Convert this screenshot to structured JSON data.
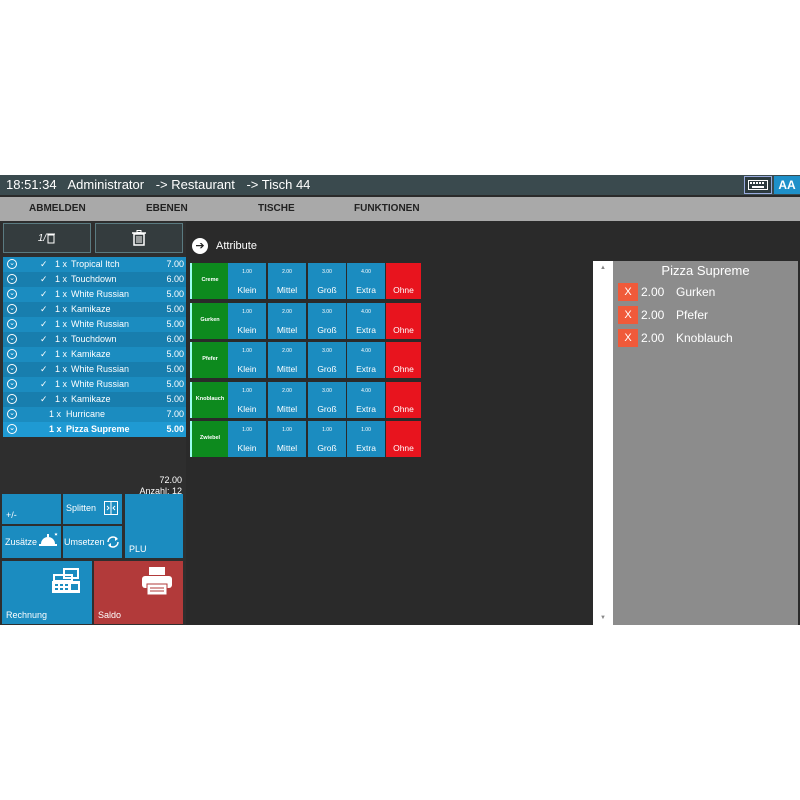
{
  "titlebar": {
    "time": "18:51:34",
    "user": "Administrator",
    "crumb1": "-> Restaurant",
    "crumb2": "-> Tisch 44",
    "aa_label": "AA"
  },
  "menu": [
    "ABMELDEN",
    "EBENEN",
    "TISCHE",
    "FUNKTIONEN"
  ],
  "toolbar": {
    "split_label": "1/"
  },
  "orders": [
    {
      "check": "✓",
      "qty": "1 x",
      "name": "Tropical Itch",
      "price": "7.00"
    },
    {
      "check": "✓",
      "qty": "1 x",
      "name": "Touchdown",
      "price": "6.00"
    },
    {
      "check": "✓",
      "qty": "1 x",
      "name": "White Russian",
      "price": "5.00"
    },
    {
      "check": "✓",
      "qty": "1 x",
      "name": "Kamikaze",
      "price": "5.00"
    },
    {
      "check": "✓",
      "qty": "1 x",
      "name": "White Russian",
      "price": "5.00"
    },
    {
      "check": "✓",
      "qty": "1 x",
      "name": "Touchdown",
      "price": "6.00"
    },
    {
      "check": "✓",
      "qty": "1 x",
      "name": "Kamikaze",
      "price": "5.00"
    },
    {
      "check": "✓",
      "qty": "1 x",
      "name": "White Russian",
      "price": "5.00"
    },
    {
      "check": "✓",
      "qty": "1 x",
      "name": "White Russian",
      "price": "5.00"
    },
    {
      "check": "✓",
      "qty": "1 x",
      "name": "Kamikaze",
      "price": "5.00"
    },
    {
      "check": "",
      "qty": "1 x",
      "name": "Hurricane",
      "price": "7.00"
    },
    {
      "check": "",
      "qty": "1 x",
      "name": "Pizza Supreme",
      "price": "5.00"
    }
  ],
  "totals": {
    "sum": "72.00",
    "count": "Anzahl: 12"
  },
  "tiles": {
    "plusminus": "+/-",
    "splitten": "Splitten",
    "zusaetze": "Zusätze",
    "umsetzen": "Umsetzen",
    "plu": "PLU",
    "rechnung": "Rechnung",
    "saldo": "Saldo"
  },
  "attribute_title": "Attribute",
  "attribute_rows": [
    {
      "name": "Creme",
      "cells": [
        {
          "price": "1.00",
          "label": "Klein"
        },
        {
          "price": "2.00",
          "label": "Mittel"
        },
        {
          "price": "3.00",
          "label": "Groß"
        },
        {
          "price": "4.00",
          "label": "Extra"
        }
      ],
      "none": "Ohne"
    },
    {
      "name": "Gurken",
      "cells": [
        {
          "price": "1.00",
          "label": "Klein"
        },
        {
          "price": "2.00",
          "label": "Mittel"
        },
        {
          "price": "3.00",
          "label": "Groß"
        },
        {
          "price": "4.00",
          "label": "Extra"
        }
      ],
      "none": "Ohne"
    },
    {
      "name": "Pfefer",
      "cells": [
        {
          "price": "1.00",
          "label": "Klein"
        },
        {
          "price": "2.00",
          "label": "Mittel"
        },
        {
          "price": "3.00",
          "label": "Groß"
        },
        {
          "price": "4.00",
          "label": "Extra"
        }
      ],
      "none": "Ohne"
    },
    {
      "name": "Knoblauch",
      "cells": [
        {
          "price": "1.00",
          "label": "Klein"
        },
        {
          "price": "2.00",
          "label": "Mittel"
        },
        {
          "price": "3.00",
          "label": "Groß"
        },
        {
          "price": "4.00",
          "label": "Extra"
        }
      ],
      "none": "Ohne"
    },
    {
      "name": "Zwiebel",
      "cells": [
        {
          "price": "1.00",
          "label": "Klein"
        },
        {
          "price": "1.00",
          "label": "Mittel"
        },
        {
          "price": "1.00",
          "label": "Groß"
        },
        {
          "price": "1.00",
          "label": "Extra"
        }
      ],
      "none": "Ohne"
    }
  ],
  "detail": {
    "title": "Pizza Supreme",
    "items": [
      {
        "x": "X",
        "amount": "2.00",
        "name": "Gurken"
      },
      {
        "x": "X",
        "amount": "2.00",
        "name": "Pfefer"
      },
      {
        "x": "X",
        "amount": "2.00",
        "name": "Knoblauch"
      }
    ]
  },
  "scroll": {
    "up": "▲",
    "down": "▼"
  },
  "colors": {
    "tile_blue": "#1b8cc0",
    "attr_green": "#0d8a1e",
    "attr_red": "#e8141e",
    "saldo_red": "#b23a3a",
    "x_orange": "#f05a3a"
  }
}
